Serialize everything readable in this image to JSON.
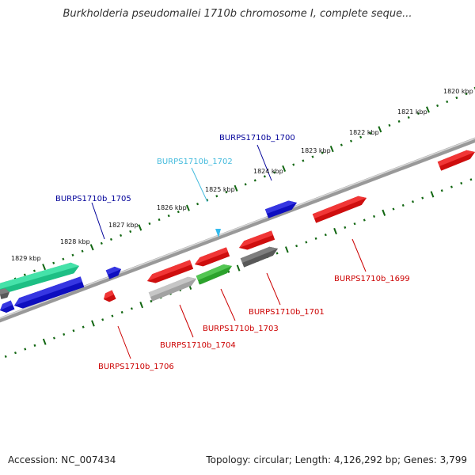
{
  "title": "Burkholderia pseudomallei 1710b chromosome I, complete seque...",
  "footer": {
    "accession_label": "Accession:",
    "accession": "NC_007434",
    "stats_text": "Topology: circular; Length: 4,126,292 bp; Genes: 3,799"
  },
  "colors": {
    "backbone": "#777777",
    "tick": "#116611",
    "gene_red": "#ee1111",
    "gene_blue": "#1111dd",
    "gene_green": "#33bb33",
    "gene_teal": "#22dd99",
    "gene_grey": "#666666",
    "gene_lightgrey": "#bbbbbb",
    "gene_cyan": "#33bbee",
    "label_red": "#cc0000",
    "label_blue": "#000099",
    "label_cyan": "#44bbdd"
  },
  "scale_labels": [
    "1820 kbp",
    "1821 kbp",
    "1822 kbp",
    "1823 kbp",
    "1824 kbp",
    "1825 kbp",
    "1826 kbp",
    "1827 kbp",
    "1828 kbp",
    "1829 kbp"
  ],
  "gene_labels": [
    {
      "text": "BURPS1710b_1700",
      "color": "label_blue"
    },
    {
      "text": "BURPS1710b_1702",
      "color": "label_cyan"
    },
    {
      "text": "BURPS1710b_1705",
      "color": "label_blue"
    },
    {
      "text": "BURPS1710b_1699",
      "color": "label_red"
    },
    {
      "text": "BURPS1710b_1701",
      "color": "label_red"
    },
    {
      "text": "BURPS1710b_1703",
      "color": "label_red"
    },
    {
      "text": "BURPS1710b_1704",
      "color": "label_red"
    },
    {
      "text": "BURPS1710b_1706",
      "color": "label_red"
    }
  ]
}
